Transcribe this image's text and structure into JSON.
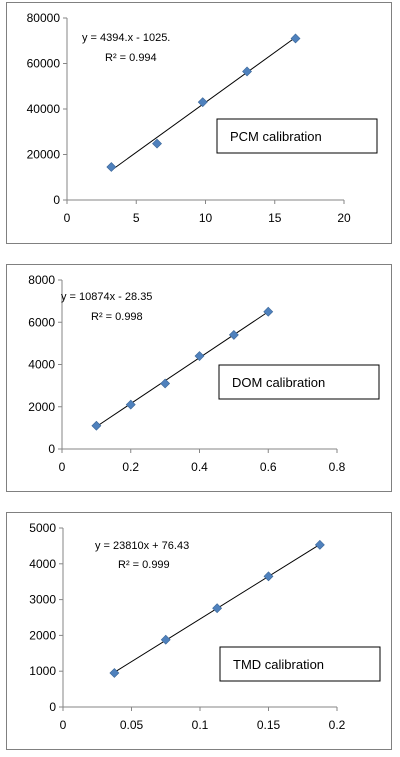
{
  "chart_data": [
    {
      "type": "scatter",
      "x": [
        3.2,
        6.5,
        9.8,
        13.0,
        16.5
      ],
      "y": [
        14500,
        24800,
        43000,
        56500,
        71000
      ],
      "trendline": {
        "slope": 4394,
        "intercept": -1025
      },
      "equation": "y = 4394.x - 1025.",
      "r2": "R² = 0.994",
      "legend": "PCM calibration",
      "xlim": [
        0,
        20
      ],
      "ylim": [
        0,
        80000
      ],
      "xticks": [
        0,
        5,
        10,
        15,
        20
      ],
      "yticks": [
        0,
        20000,
        40000,
        60000,
        80000
      ],
      "color": "#4F81BD",
      "grid": false,
      "legend_position": "right"
    },
    {
      "type": "scatter",
      "x": [
        0.1,
        0.2,
        0.3,
        0.4,
        0.5,
        0.6
      ],
      "y": [
        1100,
        2100,
        3100,
        4400,
        5400,
        6500
      ],
      "trendline": {
        "slope": 10874,
        "intercept": -28.35
      },
      "equation": "y = 10874x - 28.35",
      "r2": "R² = 0.998",
      "legend": "DOM calibration",
      "xlim": [
        0,
        0.8
      ],
      "ylim": [
        0,
        8000
      ],
      "xticks": [
        0,
        0.2,
        0.4,
        0.6,
        0.8
      ],
      "yticks": [
        0,
        2000,
        4000,
        6000,
        8000
      ],
      "color": "#4F81BD",
      "grid": false,
      "legend_position": "right"
    },
    {
      "type": "scatter",
      "x": [
        0.0375,
        0.075,
        0.1125,
        0.15,
        0.1875
      ],
      "y": [
        950,
        1880,
        2760,
        3650,
        4530
      ],
      "trendline": {
        "slope": 23810,
        "intercept": 76.43
      },
      "equation": "y = 23810x + 76.43",
      "r2": "R² = 0.999",
      "legend": "TMD calibration",
      "xlim": [
        0,
        0.2
      ],
      "ylim": [
        0,
        5000
      ],
      "xticks": [
        0,
        0.05,
        0.1,
        0.15,
        0.2
      ],
      "yticks": [
        0,
        1000,
        2000,
        3000,
        4000,
        5000
      ],
      "color": "#4F81BD",
      "grid": false,
      "legend_position": "right"
    }
  ]
}
